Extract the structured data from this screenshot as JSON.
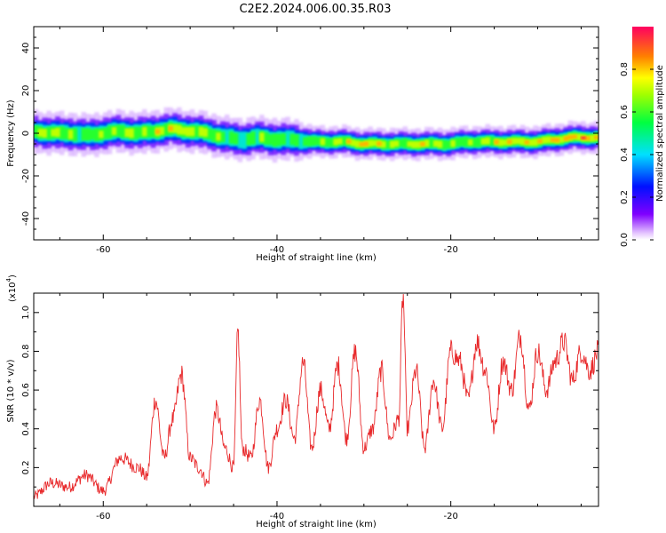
{
  "title": "C2E2.2024.006.00.35.R03",
  "colors": {
    "snr_line": "#e8292b",
    "axis": "#000000",
    "background": "#ffffff"
  },
  "chart_data": [
    {
      "type": "heatmap",
      "title": "C2E2.2024.006.00.35.R03",
      "xlabel": "Height of straight line (km)",
      "ylabel": "Frequency (Hz)",
      "xlim": [
        -68,
        -3
      ],
      "ylim": [
        -50,
        50
      ],
      "xticks": [
        -60,
        -40,
        -20
      ],
      "yticks": [
        -40,
        -20,
        0,
        20,
        40
      ],
      "grid": false,
      "colorbar": {
        "label": "Normalized spectral amplitude",
        "range": [
          0,
          1
        ],
        "ticks": [
          0.0,
          0.2,
          0.4,
          0.6,
          0.8
        ],
        "tick_labels": [
          "0.0",
          "0.2",
          "0.4",
          "0.6",
          "0.8"
        ],
        "colormap": "rainbow: white → violet → blue → cyan → green → yellow → red"
      },
      "ridge": {
        "description": "Dominant frequency band of the spectrum along height",
        "x": [
          -68,
          -66,
          -64,
          -62,
          -60,
          -58,
          -56,
          -54,
          -52,
          -50,
          -48,
          -46,
          -44,
          -42,
          -40,
          -38,
          -36,
          -34,
          -32,
          -30,
          -28,
          -26,
          -24,
          -22,
          -20,
          -18,
          -16,
          -14,
          -12,
          -10,
          -8,
          -6,
          -4,
          -3
        ],
        "frequency": [
          1,
          0,
          0,
          -1,
          0,
          1,
          0,
          1,
          2,
          1,
          0,
          -2,
          -3,
          -2,
          -3,
          -3,
          -4,
          -4,
          -4,
          -5,
          -5,
          -5,
          -5,
          -5,
          -5,
          -4,
          -4,
          -4,
          -4,
          -4,
          -3,
          -2,
          -2,
          -2
        ],
        "width": [
          4,
          4,
          4,
          4,
          4,
          4,
          4,
          4,
          4,
          4,
          4,
          4,
          4,
          4,
          4,
          4,
          3,
          3,
          3,
          3,
          3,
          3,
          3,
          3,
          3,
          3,
          3,
          3,
          3,
          3,
          3,
          3,
          3,
          3
        ],
        "amplitude": [
          0.7,
          0.8,
          0.7,
          0.65,
          0.7,
          0.75,
          0.7,
          0.8,
          0.85,
          0.8,
          0.7,
          0.7,
          0.65,
          0.7,
          0.7,
          0.6,
          0.65,
          0.75,
          0.8,
          0.9,
          0.85,
          0.75,
          0.85,
          0.8,
          0.7,
          0.7,
          0.8,
          0.85,
          0.85,
          0.85,
          0.9,
          0.95,
          0.95,
          0.9
        ]
      }
    },
    {
      "type": "line",
      "xlabel": "Height of straight line (km)",
      "ylabel": "SNR (10 * v/v)",
      "y_multiplier_label": "(x10",
      "y_multiplier_exponent": "4",
      "y_multiplier_close": ")",
      "xlim": [
        -68,
        -3
      ],
      "ylim": [
        0,
        1.1
      ],
      "xticks": [
        -60,
        -40,
        -20
      ],
      "yticks": [
        0.2,
        0.4,
        0.6,
        0.8,
        1.0
      ],
      "ytick_labels": [
        "0.2",
        "0.4",
        "0.6",
        "0.8",
        "1.0"
      ],
      "grid": false,
      "series": [
        {
          "x": [
            -68,
            -66,
            -64,
            -62,
            -60,
            -58,
            -56,
            -55,
            -54,
            -53,
            -52,
            -51,
            -50,
            -49,
            -48,
            -47,
            -46,
            -45,
            -44.5,
            -44,
            -43,
            -42,
            -41,
            -40,
            -39,
            -38,
            -37,
            -36,
            -35,
            -34,
            -33,
            -32,
            -31,
            -30,
            -29,
            -28,
            -27,
            -26,
            -25.5,
            -25,
            -24,
            -23,
            -22,
            -21,
            -20,
            -19,
            -18,
            -17,
            -16,
            -15,
            -14,
            -13,
            -12,
            -11,
            -10,
            -9,
            -8,
            -7,
            -6,
            -5,
            -4,
            -3
          ],
          "values": [
            0.05,
            0.12,
            0.1,
            0.16,
            0.08,
            0.25,
            0.2,
            0.15,
            0.55,
            0.25,
            0.45,
            0.68,
            0.25,
            0.2,
            0.12,
            0.5,
            0.3,
            0.2,
            0.9,
            0.3,
            0.25,
            0.55,
            0.2,
            0.4,
            0.55,
            0.35,
            0.74,
            0.3,
            0.6,
            0.4,
            0.73,
            0.35,
            0.8,
            0.3,
            0.4,
            0.7,
            0.35,
            0.45,
            1.08,
            0.4,
            0.7,
            0.3,
            0.65,
            0.4,
            0.8,
            0.75,
            0.55,
            0.85,
            0.7,
            0.4,
            0.75,
            0.6,
            0.88,
            0.5,
            0.8,
            0.6,
            0.75,
            0.85,
            0.65,
            0.8,
            0.7,
            0.8
          ]
        }
      ]
    }
  ]
}
